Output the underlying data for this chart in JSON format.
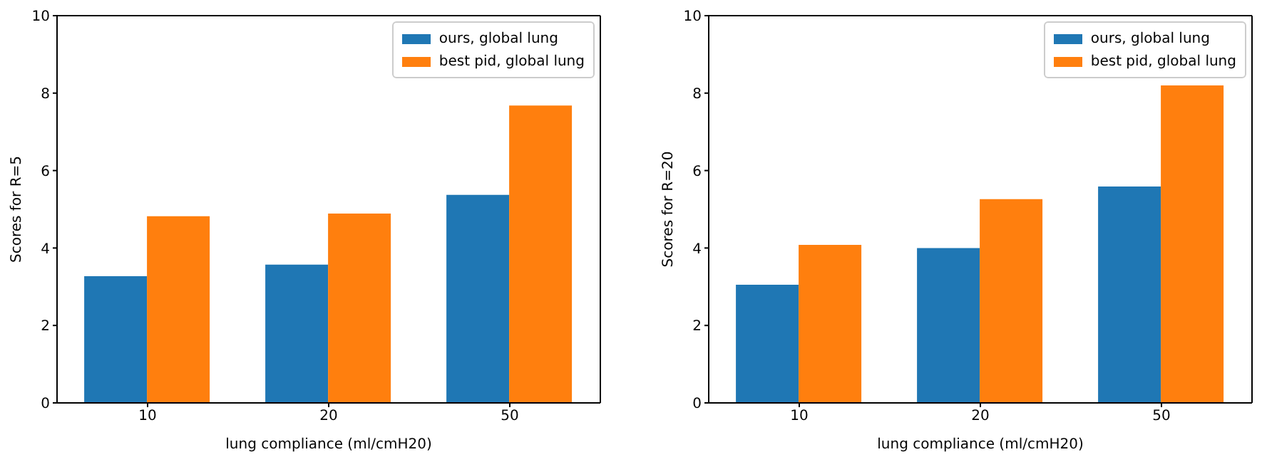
{
  "chart_data": [
    {
      "type": "bar",
      "categories": [
        "10",
        "20",
        "50"
      ],
      "xlabel": "lung compliance (ml/cmH20)",
      "ylabel": "Scores for R=5",
      "series": [
        {
          "name": "ours, global lung",
          "color": "#1f77b4",
          "values": [
            3.27,
            3.57,
            5.37
          ]
        },
        {
          "name": "best pid, global lung",
          "color": "#ff7f0e",
          "values": [
            4.82,
            4.89,
            7.68
          ]
        }
      ],
      "ylim": [
        0,
        10
      ],
      "yticks": [
        0,
        2,
        4,
        6,
        8,
        10
      ],
      "legend": "top right"
    },
    {
      "type": "bar",
      "categories": [
        "10",
        "20",
        "50"
      ],
      "xlabel": "lung compliance (ml/cmH20)",
      "ylabel": "Scores for R=20",
      "series": [
        {
          "name": "ours, global lung",
          "color": "#1f77b4",
          "values": [
            3.05,
            4.0,
            5.59
          ]
        },
        {
          "name": "best pid, global lung",
          "color": "#ff7f0e",
          "values": [
            4.08,
            5.26,
            8.2
          ]
        }
      ],
      "ylim": [
        0,
        10
      ],
      "yticks": [
        0,
        2,
        4,
        6,
        8,
        10
      ],
      "legend": "top right"
    }
  ]
}
